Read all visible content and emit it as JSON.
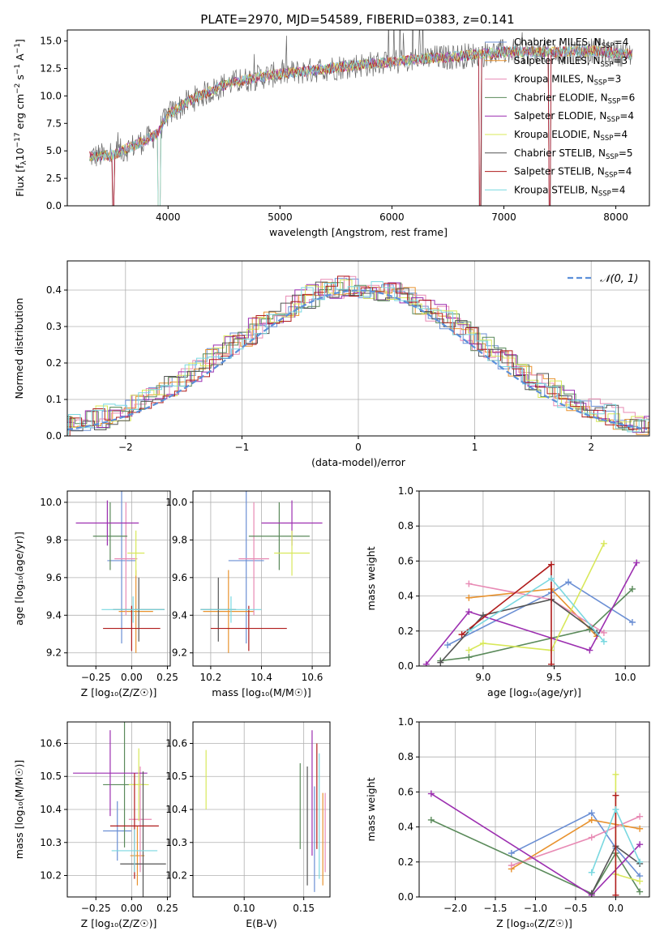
{
  "figure": {
    "title": "PLATE=2970, MJD=54589, FIBERID=0383, z=0.141"
  },
  "palette": [
    "#6b8fd4",
    "#e8922e",
    "#e88ab4",
    "#5a8a5a",
    "#9c2fb0",
    "#d8e85a",
    "#555555",
    "#b01c1c",
    "#7ad8e0"
  ],
  "chart_data": [
    {
      "id": "spectrum",
      "type": "line",
      "xlabel": "wavelength [Angstrom, rest frame]",
      "ylabel": "Flux [f$_\\lambda$10$^{-17}$ erg cm$^{-2}$ s$^{-1}$ A$^{-1}$]",
      "ylabel_parts": [
        "Flux [f",
        "λ",
        "10",
        "−17",
        " erg cm",
        "−2",
        " s",
        "−1",
        " A",
        "−1",
        "]"
      ],
      "xlim": [
        3100,
        8300
      ],
      "ylim": [
        0,
        16
      ],
      "xticks": [
        4000,
        5000,
        6000,
        7000,
        8000
      ],
      "yticks": [
        0.0,
        2.5,
        5.0,
        7.5,
        10.0,
        12.5,
        15.0
      ],
      "legend_position": "top-right",
      "continuum": {
        "x": [
          3300,
          3500,
          3700,
          3900,
          4000,
          4200,
          4500,
          4800,
          5000,
          5200,
          5500,
          5800,
          6000,
          6300,
          6600,
          7000,
          7300,
          7500,
          7800,
          8100
        ],
        "y": [
          4.5,
          4.6,
          5.5,
          6.5,
          8.3,
          9.6,
          11.0,
          11.7,
          12.0,
          12.2,
          12.6,
          12.9,
          13.1,
          13.4,
          13.6,
          14.0,
          14.0,
          14.0,
          14.1,
          13.8
        ]
      },
      "series": [
        {
          "name": "Chabrier MILES, N",
          "sub": "SSP",
          "suffix": "=4"
        },
        {
          "name": "Salpeter MILES, N",
          "sub": "SSP",
          "suffix": "=3"
        },
        {
          "name": "Kroupa MILES, N",
          "sub": "SSP",
          "suffix": "=3"
        },
        {
          "name": "Chabrier ELODIE, N",
          "sub": "SSP",
          "suffix": "=6"
        },
        {
          "name": "Salpeter ELODIE, N",
          "sub": "SSP",
          "suffix": "=4"
        },
        {
          "name": "Kroupa ELODIE, N",
          "sub": "SSP",
          "suffix": "=4"
        },
        {
          "name": "Chabrier STELIB, N",
          "sub": "SSP",
          "suffix": "=5"
        },
        {
          "name": "Salpeter STELIB, N",
          "sub": "SSP",
          "suffix": "=4"
        },
        {
          "name": "Kroupa STELIB, N",
          "sub": "SSP",
          "suffix": "=4"
        }
      ]
    },
    {
      "id": "residuals",
      "type": "histogram",
      "xlabel": "(data-model)/error",
      "ylabel": "Normed distribution",
      "xlim": [
        -2.5,
        2.5
      ],
      "ylim": [
        0,
        0.48
      ],
      "xticks": [
        -2,
        -1,
        0,
        1,
        2
      ],
      "yticks": [
        0.0,
        0.1,
        0.2,
        0.3,
        0.4
      ],
      "grid": true,
      "legend_position": "top-right",
      "legend_label": "𝒩(0, 1)",
      "bin_width": 0.1,
      "reference_curve": "normal(0,1)"
    },
    {
      "id": "age-vs-Z",
      "type": "errorbar",
      "xlabel": "Z [log₁₀(Z/Z☉)]",
      "ylabel": "age  [log₁₀(age/yr)]",
      "xlim": [
        -0.45,
        0.27
      ],
      "ylim": [
        9.13,
        10.06
      ],
      "xticks": [
        -0.25,
        0.0,
        0.25
      ],
      "xtick_labels": [
        "−0.25",
        "0.00",
        "0.25"
      ],
      "yticks": [
        9.2,
        9.4,
        9.6,
        9.8,
        10.0
      ],
      "grid": true,
      "points": [
        {
          "x": -0.07,
          "y": 9.69,
          "xerr": 0.1,
          "yerr": 0.44,
          "color": 0
        },
        {
          "x": 0.03,
          "y": 9.42,
          "xerr": 0.12,
          "yerr": 0.22,
          "color": 1
        },
        {
          "x": -0.04,
          "y": 9.7,
          "xerr": 0.08,
          "yerr": 0.3,
          "color": 2
        },
        {
          "x": -0.15,
          "y": 9.82,
          "xerr": 0.12,
          "yerr": 0.18,
          "color": 3
        },
        {
          "x": -0.17,
          "y": 9.89,
          "xerr": 0.22,
          "yerr": 0.12,
          "color": 4
        },
        {
          "x": 0.03,
          "y": 9.73,
          "xerr": 0.06,
          "yerr": 0.12,
          "color": 5
        },
        {
          "x": 0.05,
          "y": 9.43,
          "xerr": 0.18,
          "yerr": 0.17,
          "color": 6
        },
        {
          "x": 0.0,
          "y": 9.33,
          "xerr": 0.2,
          "yerr": 0.12,
          "color": 7
        },
        {
          "x": 0.01,
          "y": 9.43,
          "xerr": 0.22,
          "yerr": 0.07,
          "color": 8
        }
      ]
    },
    {
      "id": "age-vs-mass",
      "type": "errorbar",
      "xlabel": "mass [log₁₀(M/M☉)]",
      "ylabel": "",
      "xlim": [
        10.13,
        10.67
      ],
      "ylim": [
        9.13,
        10.06
      ],
      "xticks": [
        10.2,
        10.4,
        10.6
      ],
      "yticks": [
        9.2,
        9.4,
        9.6,
        9.8,
        10.0
      ],
      "grid": true,
      "points": [
        {
          "x": 10.34,
          "y": 9.69,
          "xerr": 0.07,
          "yerr": 0.44,
          "color": 0
        },
        {
          "x": 10.27,
          "y": 9.42,
          "xerr": 0.1,
          "yerr": 0.22,
          "color": 1
        },
        {
          "x": 10.37,
          "y": 9.7,
          "xerr": 0.06,
          "yerr": 0.3,
          "color": 2
        },
        {
          "x": 10.47,
          "y": 9.82,
          "xerr": 0.12,
          "yerr": 0.18,
          "color": 3
        },
        {
          "x": 10.52,
          "y": 9.89,
          "xerr": 0.12,
          "yerr": 0.12,
          "color": 4
        },
        {
          "x": 10.52,
          "y": 9.73,
          "xerr": 0.07,
          "yerr": 0.12,
          "color": 5
        },
        {
          "x": 10.23,
          "y": 9.43,
          "xerr": 0.07,
          "yerr": 0.17,
          "color": 6
        },
        {
          "x": 10.35,
          "y": 9.33,
          "xerr": 0.15,
          "yerr": 0.12,
          "color": 7
        },
        {
          "x": 10.28,
          "y": 9.43,
          "xerr": 0.12,
          "yerr": 0.07,
          "color": 8
        }
      ]
    },
    {
      "id": "weight-vs-age",
      "type": "line",
      "xlabel": "age  [log₁₀(age/yr)]",
      "ylabel": "mass weight",
      "xlim": [
        8.55,
        10.17
      ],
      "ylim": [
        0,
        1
      ],
      "xticks": [
        9.0,
        9.5,
        10.0
      ],
      "xtick_labels": [
        "9.0",
        "9.5",
        "10.0"
      ],
      "yticks": [
        0.0,
        0.2,
        0.4,
        0.6,
        0.8,
        1.0
      ],
      "grid": true,
      "series": [
        {
          "color": 0,
          "x": [
            8.75,
            9.48,
            9.6,
            10.05
          ],
          "y": [
            0.12,
            0.42,
            0.48,
            0.25
          ]
        },
        {
          "color": 1,
          "x": [
            8.9,
            9.48,
            9.8
          ],
          "y": [
            0.39,
            0.44,
            0.17
          ]
        },
        {
          "color": 2,
          "x": [
            8.9,
            9.48,
            9.85
          ],
          "y": [
            0.47,
            0.38,
            0.19
          ]
        },
        {
          "color": 3,
          "x": [
            8.7,
            8.9,
            9.75,
            10.05
          ],
          "y": [
            0.03,
            0.05,
            0.21,
            0.44
          ]
        },
        {
          "color": 4,
          "x": [
            8.6,
            8.9,
            9.75,
            10.08
          ],
          "y": [
            0.01,
            0.31,
            0.09,
            0.59
          ]
        },
        {
          "color": 5,
          "x": [
            8.9,
            9.0,
            9.48,
            9.85
          ],
          "y": [
            0.09,
            0.13,
            0.09,
            0.7
          ]
        },
        {
          "color": 6,
          "x": [
            8.7,
            9.0,
            9.48,
            9.8
          ],
          "y": [
            0.02,
            0.29,
            0.38,
            0.19
          ]
        },
        {
          "color": 7,
          "x": [
            8.85,
            9.48,
            9.48
          ],
          "y": [
            0.18,
            0.58,
            0.01
          ]
        },
        {
          "color": 8,
          "x": [
            8.9,
            9.48,
            9.85
          ],
          "y": [
            0.2,
            0.5,
            0.14
          ]
        }
      ]
    },
    {
      "id": "mass-vs-Z",
      "type": "errorbar",
      "xlabel": "Z [log₁₀(Z/Z☉)]",
      "ylabel": "mass [log₁₀(M/M☉)]",
      "xlim": [
        -0.45,
        0.27
      ],
      "ylim": [
        10.135,
        10.665
      ],
      "xticks": [
        -0.25,
        0.0,
        0.25
      ],
      "xtick_labels": [
        "−0.25",
        "0.00",
        "0.25"
      ],
      "yticks": [
        10.2,
        10.3,
        10.4,
        10.5,
        10.6
      ],
      "grid": true,
      "points": [
        {
          "x": -0.1,
          "y": 10.335,
          "xerr": 0.1,
          "yerr": 0.09,
          "color": 0
        },
        {
          "x": 0.04,
          "y": 10.26,
          "xerr": 0.05,
          "yerr": 0.09,
          "color": 1
        },
        {
          "x": 0.06,
          "y": 10.37,
          "xerr": 0.08,
          "yerr": 0.16,
          "color": 2
        },
        {
          "x": -0.05,
          "y": 10.475,
          "xerr": 0.15,
          "yerr": 0.19,
          "color": 3
        },
        {
          "x": -0.15,
          "y": 10.51,
          "xerr": 0.26,
          "yerr": 0.13,
          "color": 4
        },
        {
          "x": 0.05,
          "y": 10.475,
          "xerr": 0.07,
          "yerr": 0.11,
          "color": 5
        },
        {
          "x": 0.08,
          "y": 10.235,
          "xerr": 0.16,
          "yerr": 0.28,
          "color": 6
        },
        {
          "x": 0.02,
          "y": 10.35,
          "xerr": 0.17,
          "yerr": 0.16,
          "color": 7
        },
        {
          "x": 0.02,
          "y": 10.275,
          "xerr": 0.16,
          "yerr": 0.065,
          "color": 8
        }
      ]
    },
    {
      "id": "mass-vs-ebv",
      "type": "errorbar",
      "xlabel": "E(B-V)",
      "ylabel": "",
      "xlim": [
        0.057,
        0.172
      ],
      "ylim": [
        10.135,
        10.665
      ],
      "xticks": [
        0.1,
        0.15
      ],
      "xtick_labels": [
        "0.10",
        "0.15"
      ],
      "yticks": [
        10.2,
        10.3,
        10.4,
        10.5,
        10.6
      ],
      "grid": true,
      "points": [
        {
          "x": 0.068,
          "y": 10.49,
          "xerr": 0,
          "yerr": 0.09,
          "color": 5
        },
        {
          "x": 0.147,
          "y": 10.41,
          "xerr": 0,
          "yerr": 0.13,
          "color": 3
        },
        {
          "x": 0.153,
          "y": 10.35,
          "xerr": 0,
          "yerr": 0.18,
          "color": 6
        },
        {
          "x": 0.157,
          "y": 10.45,
          "xerr": 0,
          "yerr": 0.19,
          "color": 4
        },
        {
          "x": 0.159,
          "y": 10.31,
          "xerr": 0,
          "yerr": 0.16,
          "color": 0
        },
        {
          "x": 0.161,
          "y": 10.44,
          "xerr": 0,
          "yerr": 0.16,
          "color": 7
        },
        {
          "x": 0.163,
          "y": 10.38,
          "xerr": 0,
          "yerr": 0.19,
          "color": 8
        },
        {
          "x": 0.166,
          "y": 10.31,
          "xerr": 0,
          "yerr": 0.14,
          "color": 1
        },
        {
          "x": 0.168,
          "y": 10.33,
          "xerr": 0,
          "yerr": 0.12,
          "color": 2
        }
      ]
    },
    {
      "id": "weight-vs-Z",
      "type": "line",
      "xlabel": "Z [log₁₀(Z/Z☉)]",
      "ylabel": "mass weight",
      "xlim": [
        -2.45,
        0.42
      ],
      "ylim": [
        0,
        1
      ],
      "xticks": [
        -2.0,
        -1.5,
        -1.0,
        -0.5,
        0.0
      ],
      "xtick_labels": [
        "−2.0",
        "−1.5",
        "−1.0",
        "−0.5",
        "0.0"
      ],
      "yticks": [
        0.0,
        0.2,
        0.4,
        0.6,
        0.8,
        1.0
      ],
      "grid": true,
      "series": [
        {
          "color": 0,
          "x": [
            -1.3,
            -0.3,
            0.0,
            0.3
          ],
          "y": [
            0.25,
            0.48,
            0.28,
            0.12
          ]
        },
        {
          "color": 1,
          "x": [
            -1.3,
            -0.3,
            0.3
          ],
          "y": [
            0.16,
            0.44,
            0.39
          ]
        },
        {
          "color": 2,
          "x": [
            -1.3,
            -0.3,
            0.3
          ],
          "y": [
            0.18,
            0.34,
            0.46
          ]
        },
        {
          "color": 3,
          "x": [
            -2.3,
            -0.3,
            0.0,
            0.3
          ],
          "y": [
            0.44,
            0.02,
            0.25,
            0.03
          ]
        },
        {
          "color": 4,
          "x": [
            -2.3,
            -0.3,
            0.3
          ],
          "y": [
            0.59,
            0.01,
            0.3
          ]
        },
        {
          "color": 5,
          "x": [
            0.0,
            0.0,
            0.3
          ],
          "y": [
            0.7,
            0.13,
            0.09
          ]
        },
        {
          "color": 6,
          "x": [
            -0.3,
            0.0,
            0.3
          ],
          "y": [
            0.02,
            0.29,
            0.19
          ]
        },
        {
          "color": 7,
          "x": [
            0.0,
            0.0
          ],
          "y": [
            0.58,
            0.01
          ]
        },
        {
          "color": 8,
          "x": [
            -0.3,
            0.0,
            0.3
          ],
          "y": [
            0.14,
            0.5,
            0.2
          ]
        }
      ]
    }
  ]
}
